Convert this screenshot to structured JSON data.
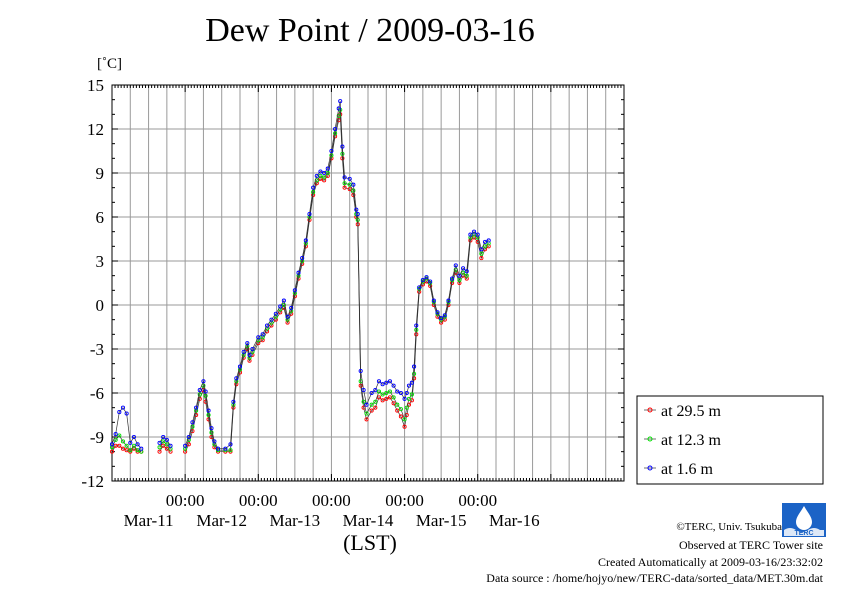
{
  "header": {
    "title": "Dew Point / 2009-03-16"
  },
  "footer": {
    "copyright": "©TERC, Univ. Tsukuba",
    "observed": "Observed at TERC Tower site",
    "created": "Created Automatically at 2009-03-16/23:32:02",
    "data_source": "Data source : /home/hojyo/new/TERC-data/sorted_data/MET.30m.dat",
    "logo_text": "TERC"
  },
  "chart_data": {
    "type": "line",
    "title": "Dew Point / 2009-03-16",
    "ylabel": "[˚C]",
    "xlabel": "(LST)",
    "ylim": [
      -12,
      15
    ],
    "yticks": [
      -12,
      -9,
      -6,
      -3,
      0,
      3,
      6,
      9,
      12,
      15
    ],
    "xlim": [
      0,
      7
    ],
    "xticks": [
      {
        "x": 1,
        "time": "00:00",
        "date": "Mar-12"
      },
      {
        "x": 2,
        "time": "00:00",
        "date": "Mar-13"
      },
      {
        "x": 3,
        "time": "00:00",
        "date": "Mar-14"
      },
      {
        "x": 4,
        "time": "00:00",
        "date": "Mar-15"
      },
      {
        "x": 5,
        "time": "00:00",
        "date": "Mar-16"
      }
    ],
    "day_labels": [
      {
        "x": 0.5,
        "label": "Mar-11"
      },
      {
        "x": 1.5,
        "label": "Mar-12"
      },
      {
        "x": 2.5,
        "label": "Mar-13"
      },
      {
        "x": 3.5,
        "label": "Mar-14"
      },
      {
        "x": 4.5,
        "label": "Mar-15"
      },
      {
        "x": 5.5,
        "label": "Mar-16"
      }
    ],
    "grid": true,
    "legend_position": "right",
    "series": [
      {
        "name": "at 29.5 m",
        "color": "#ff0000",
        "points": [
          [
            0.0,
            -10.0
          ],
          [
            0.05,
            -9.6
          ],
          [
            0.1,
            -9.6
          ],
          [
            0.15,
            -9.8
          ],
          [
            0.2,
            -9.9
          ],
          [
            0.25,
            -10.0
          ],
          [
            0.3,
            -9.8
          ],
          [
            0.35,
            -10.0
          ],
          [
            0.4,
            -10.0
          ],
          [
            0.65,
            -10.0
          ],
          [
            0.7,
            -9.6
          ],
          [
            0.75,
            -9.8
          ],
          [
            0.8,
            -10.0
          ],
          [
            1.0,
            -10.0
          ],
          [
            1.05,
            -9.5
          ],
          [
            1.1,
            -8.6
          ],
          [
            1.15,
            -7.5
          ],
          [
            1.2,
            -6.4
          ],
          [
            1.25,
            -5.8
          ],
          [
            1.28,
            -6.6
          ],
          [
            1.32,
            -7.8
          ],
          [
            1.36,
            -9.0
          ],
          [
            1.4,
            -9.7
          ],
          [
            1.45,
            -10.0
          ],
          [
            1.55,
            -10.0
          ],
          [
            1.62,
            -10.0
          ],
          [
            1.66,
            -7.0
          ],
          [
            1.7,
            -5.4
          ],
          [
            1.75,
            -4.6
          ],
          [
            1.8,
            -3.6
          ],
          [
            1.85,
            -3.0
          ],
          [
            1.88,
            -3.8
          ],
          [
            1.92,
            -3.4
          ],
          [
            2.0,
            -2.6
          ],
          [
            2.06,
            -2.4
          ],
          [
            2.12,
            -1.8
          ],
          [
            2.18,
            -1.4
          ],
          [
            2.24,
            -1.0
          ],
          [
            2.3,
            -0.5
          ],
          [
            2.35,
            -0.2
          ],
          [
            2.4,
            -1.2
          ],
          [
            2.45,
            -0.6
          ],
          [
            2.5,
            0.6
          ],
          [
            2.55,
            1.8
          ],
          [
            2.6,
            2.8
          ],
          [
            2.65,
            4.0
          ],
          [
            2.7,
            5.8
          ],
          [
            2.75,
            7.5
          ],
          [
            2.8,
            8.3
          ],
          [
            2.85,
            8.6
          ],
          [
            2.9,
            8.5
          ],
          [
            2.95,
            8.8
          ],
          [
            3.0,
            10.0
          ],
          [
            3.05,
            11.5
          ],
          [
            3.1,
            12.6
          ],
          [
            3.12,
            13.0
          ],
          [
            3.15,
            10.0
          ],
          [
            3.18,
            8.0
          ],
          [
            3.25,
            7.9
          ],
          [
            3.3,
            7.5
          ],
          [
            3.34,
            6.0
          ],
          [
            3.36,
            5.5
          ],
          [
            3.4,
            -5.5
          ],
          [
            3.44,
            -7.0
          ],
          [
            3.48,
            -7.8
          ],
          [
            3.55,
            -7.2
          ],
          [
            3.6,
            -7.0
          ],
          [
            3.65,
            -6.3
          ],
          [
            3.7,
            -6.5
          ],
          [
            3.75,
            -6.4
          ],
          [
            3.8,
            -6.3
          ],
          [
            3.85,
            -6.7
          ],
          [
            3.9,
            -7.2
          ],
          [
            3.95,
            -7.6
          ],
          [
            4.0,
            -8.3
          ],
          [
            4.03,
            -7.5
          ],
          [
            4.06,
            -6.8
          ],
          [
            4.1,
            -6.5
          ],
          [
            4.13,
            -5.0
          ],
          [
            4.16,
            -2.0
          ],
          [
            4.2,
            0.9
          ],
          [
            4.25,
            1.4
          ],
          [
            4.3,
            1.6
          ],
          [
            4.35,
            1.3
          ],
          [
            4.4,
            0.0
          ],
          [
            4.45,
            -0.8
          ],
          [
            4.5,
            -1.2
          ],
          [
            4.55,
            -1.0
          ],
          [
            4.6,
            0.0
          ],
          [
            4.65,
            1.5
          ],
          [
            4.7,
            2.2
          ],
          [
            4.75,
            1.5
          ],
          [
            4.8,
            2.0
          ],
          [
            4.85,
            1.8
          ],
          [
            4.9,
            4.4
          ],
          [
            4.95,
            4.6
          ],
          [
            5.0,
            4.3
          ],
          [
            5.05,
            3.2
          ],
          [
            5.1,
            3.8
          ],
          [
            5.15,
            4.0
          ]
        ]
      },
      {
        "name": "at 12.3 m",
        "color": "#00dd00",
        "points": [
          [
            0.0,
            -9.7
          ],
          [
            0.05,
            -9.2
          ],
          [
            0.1,
            -8.9
          ],
          [
            0.15,
            -9.3
          ],
          [
            0.2,
            -9.6
          ],
          [
            0.25,
            -9.9
          ],
          [
            0.3,
            -9.6
          ],
          [
            0.35,
            -9.9
          ],
          [
            0.4,
            -10.0
          ],
          [
            0.65,
            -9.7
          ],
          [
            0.7,
            -9.3
          ],
          [
            0.75,
            -9.5
          ],
          [
            0.8,
            -9.8
          ],
          [
            1.0,
            -9.8
          ],
          [
            1.05,
            -9.2
          ],
          [
            1.1,
            -8.3
          ],
          [
            1.15,
            -7.2
          ],
          [
            1.2,
            -6.1
          ],
          [
            1.25,
            -5.5
          ],
          [
            1.28,
            -6.2
          ],
          [
            1.32,
            -7.5
          ],
          [
            1.36,
            -8.7
          ],
          [
            1.4,
            -9.5
          ],
          [
            1.45,
            -9.9
          ],
          [
            1.55,
            -9.9
          ],
          [
            1.62,
            -9.9
          ],
          [
            1.66,
            -6.8
          ],
          [
            1.7,
            -5.2
          ],
          [
            1.75,
            -4.4
          ],
          [
            1.8,
            -3.4
          ],
          [
            1.85,
            -2.8
          ],
          [
            1.88,
            -3.6
          ],
          [
            1.92,
            -3.2
          ],
          [
            2.0,
            -2.4
          ],
          [
            2.06,
            -2.2
          ],
          [
            2.12,
            -1.6
          ],
          [
            2.18,
            -1.2
          ],
          [
            2.24,
            -0.8
          ],
          [
            2.3,
            -0.3
          ],
          [
            2.35,
            0.0
          ],
          [
            2.4,
            -1.0
          ],
          [
            2.45,
            -0.4
          ],
          [
            2.5,
            0.8
          ],
          [
            2.55,
            2.0
          ],
          [
            2.6,
            3.0
          ],
          [
            2.65,
            4.2
          ],
          [
            2.7,
            6.0
          ],
          [
            2.75,
            7.7
          ],
          [
            2.8,
            8.5
          ],
          [
            2.85,
            8.8
          ],
          [
            2.9,
            8.7
          ],
          [
            2.95,
            9.0
          ],
          [
            3.0,
            10.2
          ],
          [
            3.05,
            11.7
          ],
          [
            3.1,
            12.9
          ],
          [
            3.12,
            13.3
          ],
          [
            3.15,
            10.3
          ],
          [
            3.18,
            8.3
          ],
          [
            3.25,
            8.2
          ],
          [
            3.3,
            7.8
          ],
          [
            3.34,
            6.2
          ],
          [
            3.36,
            5.8
          ],
          [
            3.4,
            -5.2
          ],
          [
            3.44,
            -6.6
          ],
          [
            3.48,
            -7.4
          ],
          [
            3.55,
            -6.8
          ],
          [
            3.6,
            -6.6
          ],
          [
            3.65,
            -5.9
          ],
          [
            3.7,
            -6.1
          ],
          [
            3.75,
            -6.0
          ],
          [
            3.8,
            -5.9
          ],
          [
            3.85,
            -6.3
          ],
          [
            3.9,
            -6.8
          ],
          [
            3.95,
            -7.1
          ],
          [
            4.0,
            -7.8
          ],
          [
            4.03,
            -7.0
          ],
          [
            4.06,
            -6.4
          ],
          [
            4.1,
            -6.1
          ],
          [
            4.13,
            -4.7
          ],
          [
            4.16,
            -1.7
          ],
          [
            4.2,
            1.1
          ],
          [
            4.25,
            1.6
          ],
          [
            4.3,
            1.8
          ],
          [
            4.35,
            1.5
          ],
          [
            4.4,
            0.2
          ],
          [
            4.45,
            -0.6
          ],
          [
            4.5,
            -1.0
          ],
          [
            4.55,
            -0.8
          ],
          [
            4.6,
            0.2
          ],
          [
            4.65,
            1.7
          ],
          [
            4.7,
            2.4
          ],
          [
            4.75,
            1.7
          ],
          [
            4.8,
            2.2
          ],
          [
            4.85,
            2.0
          ],
          [
            4.9,
            4.6
          ],
          [
            4.95,
            4.8
          ],
          [
            5.0,
            4.6
          ],
          [
            5.05,
            3.5
          ],
          [
            5.1,
            4.0
          ],
          [
            5.15,
            4.2
          ]
        ]
      },
      {
        "name": "at 1.6 m",
        "color": "#0000ff",
        "points": [
          [
            0.0,
            -9.5
          ],
          [
            0.05,
            -8.8
          ],
          [
            0.1,
            -7.3
          ],
          [
            0.15,
            -7.0
          ],
          [
            0.2,
            -7.4
          ],
          [
            0.25,
            -9.4
          ],
          [
            0.3,
            -9.0
          ],
          [
            0.35,
            -9.5
          ],
          [
            0.4,
            -9.8
          ],
          [
            0.65,
            -9.4
          ],
          [
            0.7,
            -9.0
          ],
          [
            0.75,
            -9.2
          ],
          [
            0.8,
            -9.6
          ],
          [
            1.0,
            -9.6
          ],
          [
            1.05,
            -9.0
          ],
          [
            1.1,
            -8.0
          ],
          [
            1.15,
            -7.0
          ],
          [
            1.2,
            -5.8
          ],
          [
            1.25,
            -5.2
          ],
          [
            1.28,
            -5.9
          ],
          [
            1.32,
            -7.2
          ],
          [
            1.36,
            -8.4
          ],
          [
            1.4,
            -9.3
          ],
          [
            1.45,
            -9.8
          ],
          [
            1.55,
            -9.8
          ],
          [
            1.62,
            -9.5
          ],
          [
            1.66,
            -6.6
          ],
          [
            1.7,
            -5.0
          ],
          [
            1.75,
            -4.2
          ],
          [
            1.8,
            -3.2
          ],
          [
            1.85,
            -2.6
          ],
          [
            1.88,
            -3.4
          ],
          [
            1.92,
            -3.0
          ],
          [
            2.0,
            -2.2
          ],
          [
            2.06,
            -2.0
          ],
          [
            2.12,
            -1.4
          ],
          [
            2.18,
            -1.0
          ],
          [
            2.24,
            -0.6
          ],
          [
            2.3,
            -0.1
          ],
          [
            2.35,
            0.3
          ],
          [
            2.4,
            -0.8
          ],
          [
            2.45,
            -0.2
          ],
          [
            2.5,
            1.0
          ],
          [
            2.55,
            2.2
          ],
          [
            2.6,
            3.2
          ],
          [
            2.65,
            4.4
          ],
          [
            2.7,
            6.2
          ],
          [
            2.75,
            8.0
          ],
          [
            2.8,
            8.8
          ],
          [
            2.85,
            9.1
          ],
          [
            2.9,
            9.0
          ],
          [
            2.95,
            9.3
          ],
          [
            3.0,
            10.5
          ],
          [
            3.05,
            12.0
          ],
          [
            3.1,
            13.4
          ],
          [
            3.12,
            13.9
          ],
          [
            3.15,
            10.8
          ],
          [
            3.18,
            8.7
          ],
          [
            3.25,
            8.6
          ],
          [
            3.3,
            8.2
          ],
          [
            3.34,
            6.5
          ],
          [
            3.36,
            6.2
          ],
          [
            3.4,
            -4.5
          ],
          [
            3.44,
            -5.8
          ],
          [
            3.48,
            -6.8
          ],
          [
            3.55,
            -6.0
          ],
          [
            3.6,
            -5.8
          ],
          [
            3.65,
            -5.2
          ],
          [
            3.7,
            -5.4
          ],
          [
            3.75,
            -5.3
          ],
          [
            3.8,
            -5.2
          ],
          [
            3.85,
            -5.5
          ],
          [
            3.9,
            -5.9
          ],
          [
            3.95,
            -6.0
          ],
          [
            4.0,
            -6.4
          ],
          [
            4.03,
            -6.0
          ],
          [
            4.06,
            -5.5
          ],
          [
            4.1,
            -5.3
          ],
          [
            4.13,
            -4.2
          ],
          [
            4.16,
            -1.4
          ],
          [
            4.2,
            1.2
          ],
          [
            4.25,
            1.7
          ],
          [
            4.3,
            1.9
          ],
          [
            4.35,
            1.6
          ],
          [
            4.4,
            0.3
          ],
          [
            4.45,
            -0.5
          ],
          [
            4.5,
            -0.9
          ],
          [
            4.55,
            -0.7
          ],
          [
            4.6,
            0.3
          ],
          [
            4.65,
            1.8
          ],
          [
            4.7,
            2.7
          ],
          [
            4.75,
            2.0
          ],
          [
            4.8,
            2.5
          ],
          [
            4.85,
            2.3
          ],
          [
            4.9,
            4.8
          ],
          [
            4.95,
            5.0
          ],
          [
            5.0,
            4.8
          ],
          [
            5.05,
            3.8
          ],
          [
            5.1,
            4.3
          ],
          [
            5.15,
            4.4
          ]
        ]
      }
    ]
  }
}
